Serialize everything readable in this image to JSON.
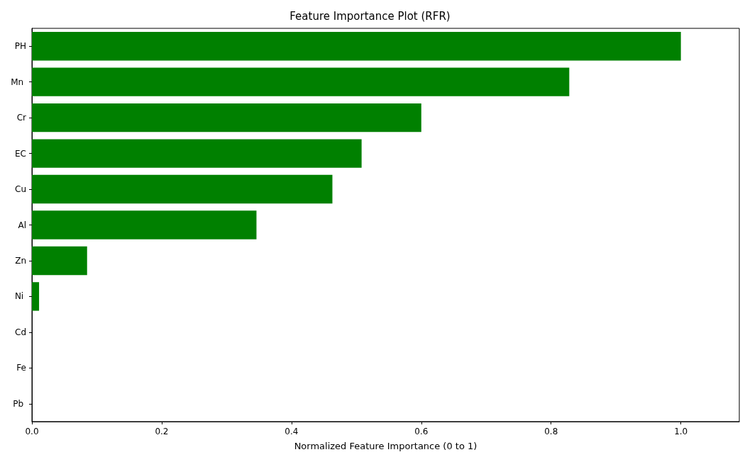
{
  "chart_data": {
    "type": "bar",
    "orientation": "horizontal",
    "title": "Feature Importance Plot (RFR)",
    "xlabel": "Normalized Feature Importance (0 to 1)",
    "categories": [
      "PH",
      "Mn ",
      "Cr",
      "EC",
      "Cu",
      "Al",
      "Zn",
      "Ni ",
      "Cd",
      "Fe",
      "Pb "
    ],
    "values": [
      1.0,
      0.828,
      0.6,
      0.508,
      0.463,
      0.346,
      0.085,
      0.011,
      0,
      0,
      0
    ],
    "color": "#008000",
    "xlim": [
      0,
      1.09
    ],
    "xticks": [
      {
        "value": 0,
        "label": "0.0"
      },
      {
        "value": 0.2,
        "label": "0.2"
      },
      {
        "value": 0.4,
        "label": "0.4"
      },
      {
        "value": 0.6,
        "label": "0.6"
      },
      {
        "value": 0.8,
        "label": "0.8"
      },
      {
        "value": 1.0,
        "label": "1.0"
      }
    ],
    "grid": false
  }
}
